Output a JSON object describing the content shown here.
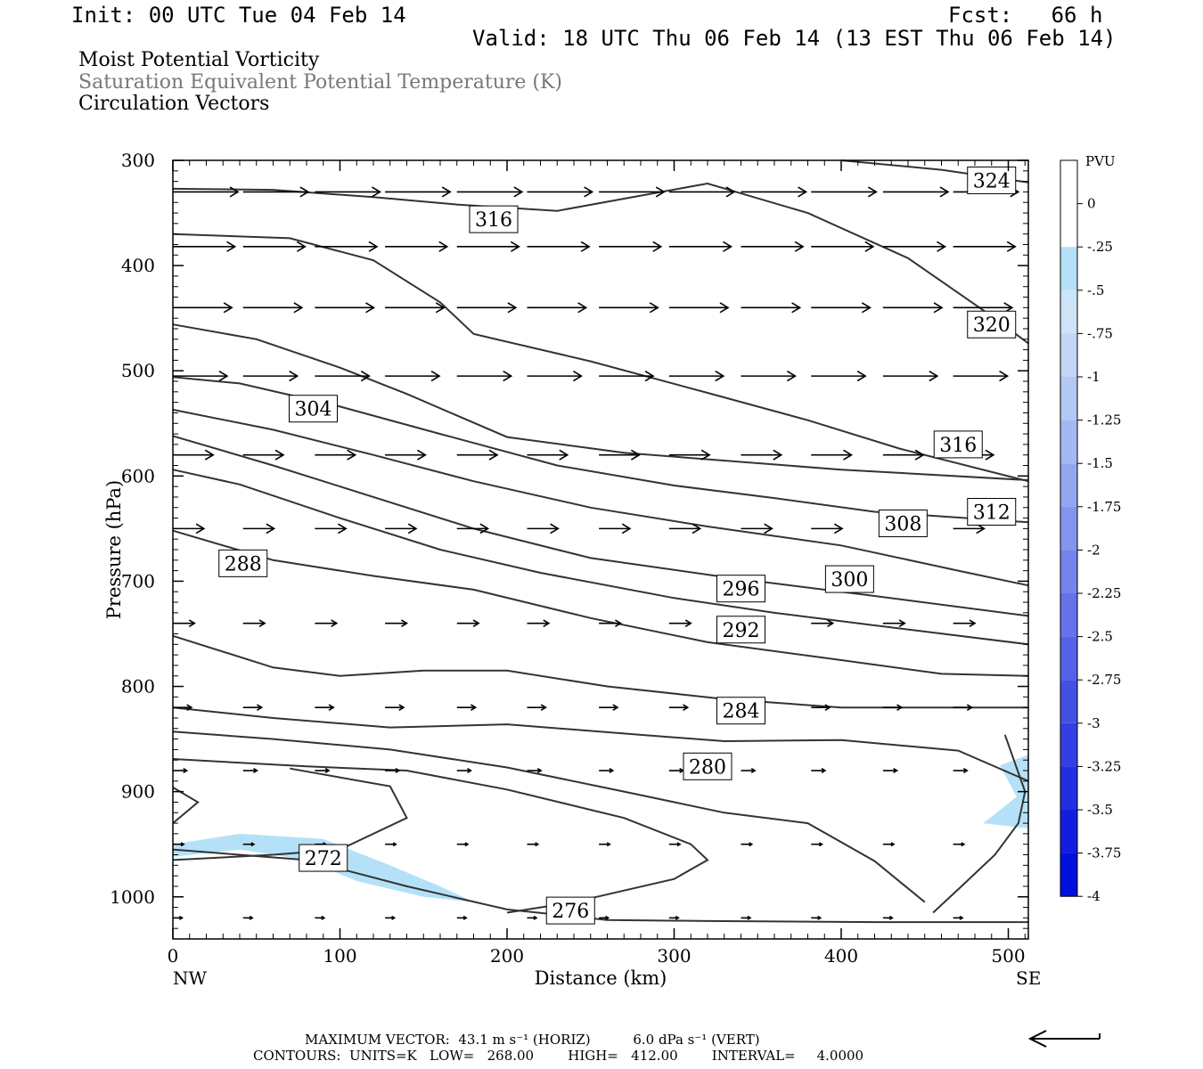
{
  "header": {
    "init": "Init: 00 UTC Tue 04 Feb 14",
    "fcst": "Fcst:   66 h",
    "valid": "Valid: 18 UTC Thu 06 Feb 14 (13 EST Thu 06 Feb 14)",
    "fields": [
      "Moist Potential Vorticity",
      "Saturation Equivalent Potential Temperature (K)",
      "Circulation Vectors"
    ]
  },
  "colors": {
    "text": "#000000",
    "field2": "#777777",
    "contour": "#333333",
    "pv_shade": "#b5e1f8",
    "plot_border": "#000000"
  },
  "chart_data": {
    "type": "contour",
    "xlabel": "Distance (km)",
    "ylabel": "Pressure (hPa)",
    "xlim": [
      0,
      512
    ],
    "ylim": [
      1040,
      300
    ],
    "y_scale": "pressure (inverted)",
    "xticks": [
      0,
      100,
      200,
      300,
      400,
      500
    ],
    "yticks": [
      300,
      400,
      500,
      600,
      700,
      800,
      900,
      1000
    ],
    "x_end_labels": {
      "left": "NW",
      "right": "SE"
    },
    "contour_units": "K",
    "contour_low": 268.0,
    "contour_high": 412.0,
    "contour_interval": 4.0,
    "contours": [
      {
        "level": "324",
        "pts": [
          [
            400,
            300
          ],
          [
            460,
            309
          ],
          [
            512,
            321
          ]
        ],
        "label": {
          "text": "324",
          "x": 490,
          "p": 319
        }
      },
      {
        "level": "320",
        "pts": [
          [
            0,
            327
          ],
          [
            60,
            328
          ],
          [
            120,
            335
          ],
          [
            170,
            342
          ],
          [
            230,
            348
          ],
          [
            320,
            322
          ],
          [
            380,
            350
          ],
          [
            440,
            393
          ],
          [
            490,
            448
          ],
          [
            512,
            474
          ]
        ],
        "label": {
          "text": "320",
          "x": 490,
          "p": 456
        }
      },
      {
        "level": "316",
        "pts": [
          [
            0,
            370
          ],
          [
            70,
            374
          ],
          [
            120,
            395
          ],
          [
            160,
            435
          ],
          [
            180,
            465
          ],
          [
            250,
            491
          ],
          [
            320,
            521
          ],
          [
            380,
            547
          ],
          [
            435,
            574
          ],
          [
            512,
            605
          ]
        ],
        "label": {
          "text": "316",
          "x": 192,
          "p": 356
        }
      },
      {
        "level": "316b",
        "pts": [
          [
            0,
            456
          ],
          [
            50,
            470
          ],
          [
            100,
            497
          ],
          [
            140,
            522
          ],
          [
            200,
            563
          ],
          [
            270,
            578
          ],
          [
            400,
            594
          ],
          [
            512,
            604
          ]
        ],
        "label": {
          "text": "316",
          "x": 470,
          "p": 570
        }
      },
      {
        "level": "312",
        "pts": [
          [
            0,
            506
          ],
          [
            40,
            512
          ],
          [
            100,
            534
          ],
          [
            160,
            560
          ],
          [
            230,
            590
          ],
          [
            300,
            609
          ],
          [
            360,
            621
          ],
          [
            420,
            634
          ],
          [
            512,
            644
          ]
        ],
        "label": {
          "text": "312",
          "x": 490,
          "p": 634
        }
      },
      {
        "level": "308",
        "pts": [
          [
            0,
            537
          ],
          [
            60,
            556
          ],
          [
            120,
            580
          ],
          [
            180,
            605
          ],
          [
            250,
            630
          ],
          [
            320,
            648
          ],
          [
            400,
            666
          ],
          [
            470,
            690
          ],
          [
            512,
            704
          ]
        ],
        "label": {
          "text": "308",
          "x": 437,
          "p": 645
        }
      },
      {
        "level": "304",
        "pts": [
          [
            0,
            562
          ],
          [
            60,
            590
          ],
          [
            120,
            620
          ],
          [
            180,
            650
          ],
          [
            250,
            678
          ],
          [
            330,
            696
          ],
          [
            420,
            714
          ],
          [
            512,
            733
          ]
        ],
        "label": {
          "text": "304",
          "x": 84,
          "p": 536
        }
      },
      {
        "level": "300",
        "pts": [
          [
            0,
            594
          ],
          [
            40,
            608
          ],
          [
            100,
            640
          ],
          [
            160,
            670
          ],
          [
            220,
            692
          ],
          [
            300,
            716
          ],
          [
            360,
            730
          ],
          [
            420,
            742
          ],
          [
            512,
            760
          ]
        ],
        "label": {
          "text": "300",
          "x": 405,
          "p": 698
        }
      },
      {
        "level": "296",
        "pts": [
          [
            0,
            652
          ],
          [
            60,
            680
          ],
          [
            120,
            695
          ],
          [
            180,
            708
          ],
          [
            250,
            735
          ],
          [
            320,
            758
          ],
          [
            400,
            775
          ],
          [
            460,
            788
          ],
          [
            512,
            790
          ]
        ],
        "label": {
          "text": "296",
          "x": 340,
          "p": 707
        }
      },
      {
        "level": "292",
        "pts": [
          [
            0,
            752
          ],
          [
            60,
            782
          ],
          [
            100,
            790
          ],
          [
            150,
            785
          ],
          [
            200,
            785
          ],
          [
            260,
            800
          ],
          [
            330,
            812
          ],
          [
            400,
            820
          ],
          [
            512,
            820
          ]
        ],
        "label": {
          "text": "292",
          "x": 340,
          "p": 746
        }
      },
      {
        "level": "288",
        "pts": [
          [
            0,
            820
          ],
          [
            60,
            830
          ],
          [
            130,
            839
          ],
          [
            200,
            836
          ],
          [
            280,
            846
          ],
          [
            330,
            852
          ],
          [
            400,
            851
          ],
          [
            470,
            861
          ],
          [
            512,
            890
          ]
        ],
        "label": {
          "text": "288",
          "x": 42,
          "p": 683
        }
      },
      {
        "level": "284",
        "pts": [
          [
            0,
            843
          ],
          [
            60,
            850
          ],
          [
            130,
            860
          ],
          [
            200,
            877
          ],
          [
            270,
            900
          ],
          [
            330,
            920
          ],
          [
            380,
            930
          ],
          [
            420,
            966
          ],
          [
            450,
            1005
          ]
        ],
        "label": {
          "text": "284",
          "x": 340,
          "p": 823
        }
      },
      {
        "level": "280",
        "pts": [
          [
            0,
            869
          ],
          [
            80,
            876
          ],
          [
            140,
            880
          ],
          [
            200,
            898
          ],
          [
            270,
            925
          ],
          [
            310,
            950
          ],
          [
            320,
            965
          ],
          [
            300,
            983
          ],
          [
            240,
            1005
          ],
          [
            200,
            1015
          ]
        ],
        "label": {
          "text": "280",
          "x": 320,
          "p": 876
        }
      },
      {
        "level": "276",
        "pts": [
          [
            0,
            955
          ],
          [
            80,
            965
          ],
          [
            140,
            990
          ],
          [
            200,
            1012
          ],
          [
            260,
            1022
          ],
          [
            320,
            1023
          ],
          [
            420,
            1024
          ],
          [
            512,
            1024
          ]
        ],
        "label": {
          "text": "276",
          "x": 238,
          "p": 1013
        }
      },
      {
        "level": "272",
        "pts": [
          [
            0,
            896
          ],
          [
            15,
            910
          ],
          [
            0,
            930
          ]
        ],
        "label": {
          "text": "272",
          "x": 90,
          "p": 963
        }
      },
      {
        "level": "272b",
        "pts": [
          [
            70,
            878
          ],
          [
            130,
            895
          ],
          [
            140,
            925
          ],
          [
            100,
            955
          ],
          [
            60,
            960
          ],
          [
            0,
            965
          ]
        ],
        "label": null
      },
      {
        "level": "276b",
        "pts": [
          [
            498,
            846
          ],
          [
            510,
            900
          ],
          [
            506,
            930
          ],
          [
            492,
            960
          ],
          [
            472,
            990
          ],
          [
            455,
            1015
          ]
        ],
        "label": null
      }
    ],
    "pv_shaded": [
      {
        "label": "PV band",
        "pts": [
          [
            0,
            950
          ],
          [
            40,
            940
          ],
          [
            90,
            945
          ],
          [
            130,
            970
          ],
          [
            160,
            990
          ],
          [
            180,
            1005
          ],
          [
            150,
            1000
          ],
          [
            110,
            985
          ],
          [
            80,
            965
          ],
          [
            40,
            955
          ],
          [
            0,
            962
          ]
        ]
      },
      {
        "label": "PV right edge",
        "pts": [
          [
            495,
            875
          ],
          [
            512,
            865
          ],
          [
            512,
            935
          ],
          [
            485,
            930
          ],
          [
            505,
            905
          ]
        ]
      }
    ],
    "colorbar": {
      "title": "PVU",
      "labels": [
        "0",
        "-.25",
        "-.5",
        "-.75",
        "-1",
        "-1.25",
        "-1.5",
        "-1.75",
        "-2",
        "-2.25",
        "-2.5",
        "-2.75",
        "-3",
        "-3.25",
        "-3.5",
        "-3.75",
        "-4"
      ],
      "colors": [
        "#ffffff",
        "#ffffff",
        "#b5e1f8",
        "#cde4f7",
        "#c2d6f5",
        "#b4c8f4",
        "#a5b8f2",
        "#95a6f0",
        "#8595ee",
        "#7583ec",
        "#6572ea",
        "#5461e8",
        "#4350e6",
        "#333fe4",
        "#222ee2",
        "#121de0",
        "#0010dd"
      ]
    },
    "vector_rows": [
      {
        "p": 330,
        "xs": [
          0,
          42,
          85,
          127,
          170,
          212,
          255,
          297,
          340,
          382,
          425,
          467
        ],
        "u": [
          42,
          42,
          42,
          42,
          42,
          42,
          42,
          42,
          42,
          42,
          42,
          42
        ]
      },
      {
        "p": 382,
        "xs": [
          0,
          42,
          85,
          127,
          170,
          212,
          255,
          297,
          340,
          382,
          425,
          467
        ],
        "u": [
          40,
          40,
          40,
          40,
          40,
          40,
          40,
          40,
          40,
          40,
          40,
          40
        ]
      },
      {
        "p": 440,
        "xs": [
          0,
          42,
          85,
          127,
          170,
          212,
          255,
          297,
          340,
          382,
          425,
          467
        ],
        "u": [
          38,
          38,
          38,
          38,
          38,
          38,
          38,
          38,
          38,
          38,
          38,
          38
        ]
      },
      {
        "p": 505,
        "xs": [
          0,
          42,
          85,
          127,
          170,
          212,
          255,
          297,
          340,
          382,
          425,
          467
        ],
        "u": [
          35,
          35,
          35,
          35,
          35,
          35,
          35,
          35,
          35,
          35,
          35,
          35
        ]
      },
      {
        "p": 580,
        "xs": [
          0,
          42,
          85,
          127,
          170,
          212,
          255,
          297,
          340,
          382,
          425,
          467
        ],
        "u": [
          26,
          26,
          26,
          26,
          26,
          26,
          26,
          26,
          26,
          26,
          26,
          26
        ]
      },
      {
        "p": 650,
        "xs": [
          0,
          42,
          85,
          127,
          170,
          212,
          255,
          297,
          340,
          382,
          425,
          467
        ],
        "u": [
          20,
          20,
          20,
          20,
          20,
          20,
          20,
          20,
          20,
          20,
          20,
          20
        ]
      },
      {
        "p": 740,
        "xs": [
          0,
          42,
          85,
          127,
          170,
          212,
          255,
          297,
          340,
          382,
          425,
          467
        ],
        "u": [
          14,
          14,
          14,
          14,
          14,
          14,
          14,
          14,
          14,
          14,
          14,
          14
        ]
      },
      {
        "p": 820,
        "xs": [
          0,
          42,
          85,
          127,
          170,
          212,
          255,
          297,
          340,
          382,
          425,
          467
        ],
        "u": [
          12,
          12,
          12,
          12,
          12,
          12,
          12,
          12,
          12,
          12,
          12,
          12
        ]
      },
      {
        "p": 880,
        "xs": [
          0,
          42,
          85,
          127,
          170,
          212,
          255,
          297,
          340,
          382,
          425,
          467
        ],
        "u": [
          9,
          9,
          9,
          9,
          9,
          9,
          9,
          9,
          9,
          9,
          9,
          9
        ]
      },
      {
        "p": 950,
        "xs": [
          0,
          42,
          85,
          127,
          170,
          212,
          255,
          297,
          340,
          382,
          425,
          467
        ],
        "u": [
          7,
          7,
          7,
          7,
          7,
          7,
          7,
          7,
          7,
          7,
          7,
          7
        ]
      },
      {
        "p": 1020,
        "xs": [
          0,
          42,
          85,
          127,
          170,
          212,
          255,
          297,
          340,
          382,
          425,
          467
        ],
        "u": [
          6,
          6,
          6,
          6,
          6,
          6,
          6,
          6,
          6,
          6,
          6,
          6
        ]
      }
    ]
  },
  "footer": {
    "max_vector": "MAXIMUM VECTOR:  43.1 m s⁻¹ (HORIZ)          6.0 dPa s⁻¹ (VERT)",
    "contours_line": "CONTOURS:  UNITS=K   LOW=   268.00        HIGH=   412.00        INTERVAL=     4.0000"
  }
}
